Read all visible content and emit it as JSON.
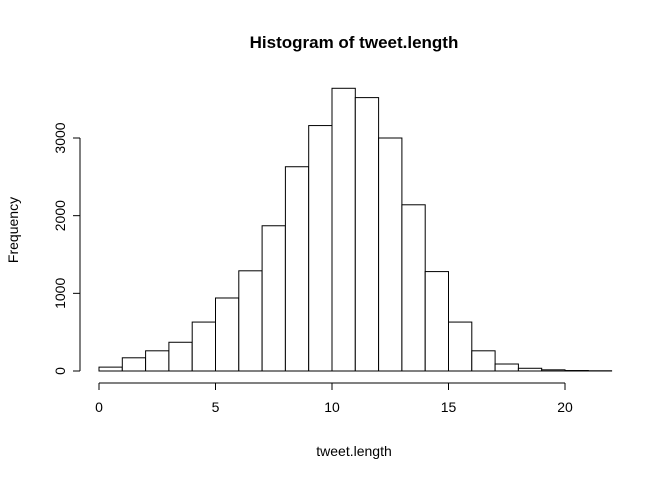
{
  "chart_data": {
    "type": "bar",
    "title": "Histogram of tweet.length",
    "xlabel": "tweet.length",
    "ylabel": "Frequency",
    "bin_edges": [
      0,
      1,
      2,
      3,
      4,
      5,
      6,
      7,
      8,
      9,
      10,
      11,
      12,
      13,
      14,
      15,
      16,
      17,
      18,
      19,
      20,
      21,
      22
    ],
    "values": [
      50,
      170,
      260,
      370,
      630,
      940,
      1290,
      1870,
      2630,
      3160,
      3640,
      3520,
      3000,
      2140,
      1280,
      630,
      260,
      90,
      35,
      15,
      6,
      3
    ],
    "xlim": [
      0,
      22
    ],
    "ylim": [
      0,
      3640
    ],
    "x_ticks": [
      0,
      5,
      10,
      15,
      20
    ],
    "y_ticks": [
      0,
      1000,
      2000,
      3000
    ],
    "x_tick_labels": [
      "0",
      "5",
      "10",
      "15",
      "20"
    ],
    "y_tick_labels": [
      "0",
      "1000",
      "2000",
      "3000"
    ],
    "grid": false,
    "legend": "none"
  }
}
